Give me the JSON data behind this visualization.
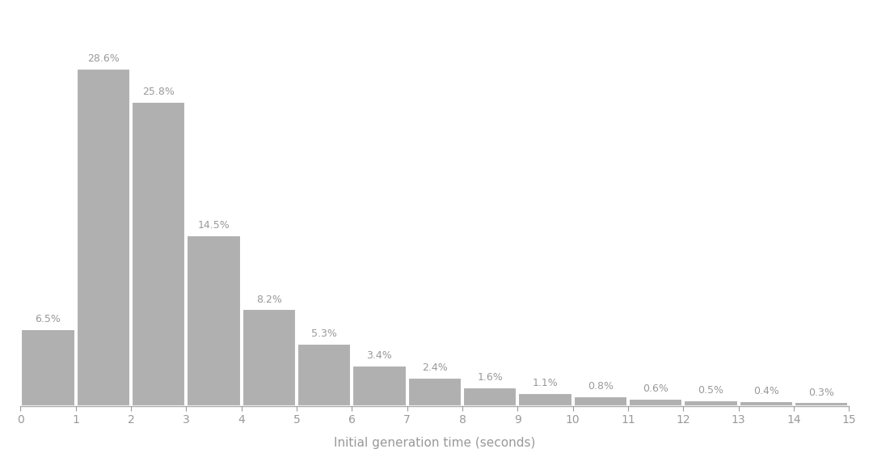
{
  "categories": [
    0,
    1,
    2,
    3,
    4,
    5,
    6,
    7,
    8,
    9,
    10,
    11,
    12,
    13,
    14
  ],
  "values": [
    6.5,
    28.6,
    25.8,
    14.5,
    8.2,
    5.3,
    3.4,
    2.4,
    1.6,
    1.1,
    0.8,
    0.6,
    0.5,
    0.4,
    0.3
  ],
  "labels": [
    "6.5%",
    "28.6%",
    "25.8%",
    "14.5%",
    "8.2%",
    "5.3%",
    "3.4%",
    "2.4%",
    "1.6%",
    "1.1%",
    "0.8%",
    "0.6%",
    "0.5%",
    "0.4%",
    "0.3%"
  ],
  "bar_color": "#b0b0b0",
  "bar_edgecolor": "#ffffff",
  "background_color": "#ffffff",
  "xlabel": "Initial generation time (seconds)",
  "xlim": [
    0,
    15
  ],
  "ylim": [
    0,
    33
  ],
  "xlabel_fontsize": 11,
  "label_fontsize": 9,
  "label_color": "#999999",
  "tick_fontsize": 10,
  "tick_color": "#999999",
  "spine_color": "#aaaaaa"
}
